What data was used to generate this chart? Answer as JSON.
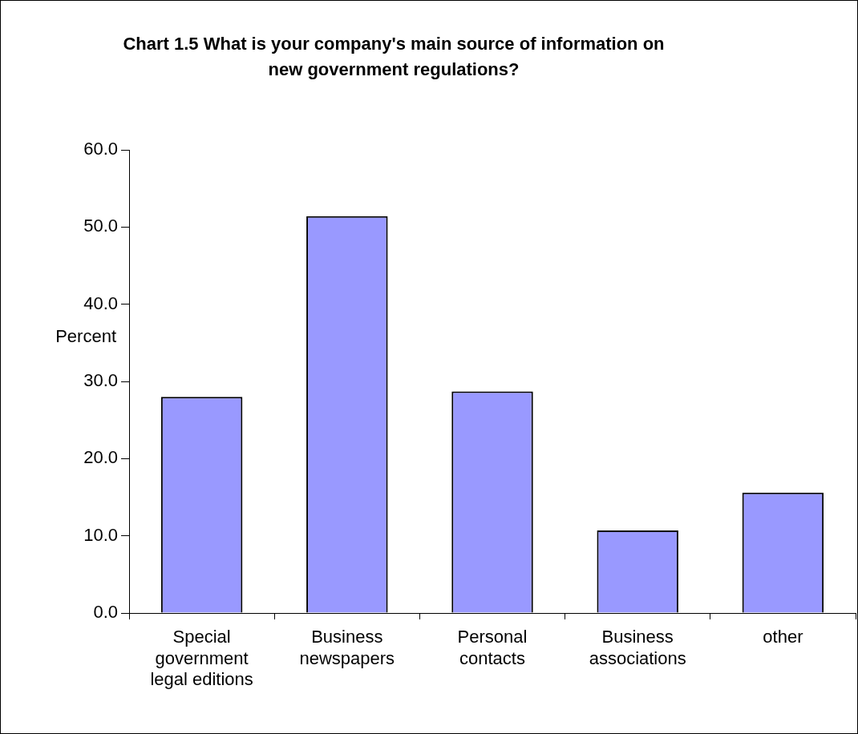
{
  "chart_data": {
    "type": "bar",
    "title": "Chart 1.5 What is your company's main source of information on new government regulations?",
    "ylabel": "Percent",
    "categories": [
      "Special government legal editions",
      "Business newspapers",
      "Personal contacts",
      "Business associations",
      "other"
    ],
    "values": [
      28.0,
      51.4,
      28.7,
      10.7,
      15.6
    ],
    "color": "#9999ff",
    "ylim": [
      0,
      60
    ],
    "yticks": [
      {
        "value": 0,
        "label": "0.0"
      },
      {
        "value": 10,
        "label": "10.0"
      },
      {
        "value": 20,
        "label": "20.0"
      },
      {
        "value": 30,
        "label": "30.0"
      },
      {
        "value": 40,
        "label": "40.0"
      },
      {
        "value": 50,
        "label": "50.0"
      },
      {
        "value": 60,
        "label": "60.0"
      }
    ],
    "grid": false,
    "legend": false
  }
}
